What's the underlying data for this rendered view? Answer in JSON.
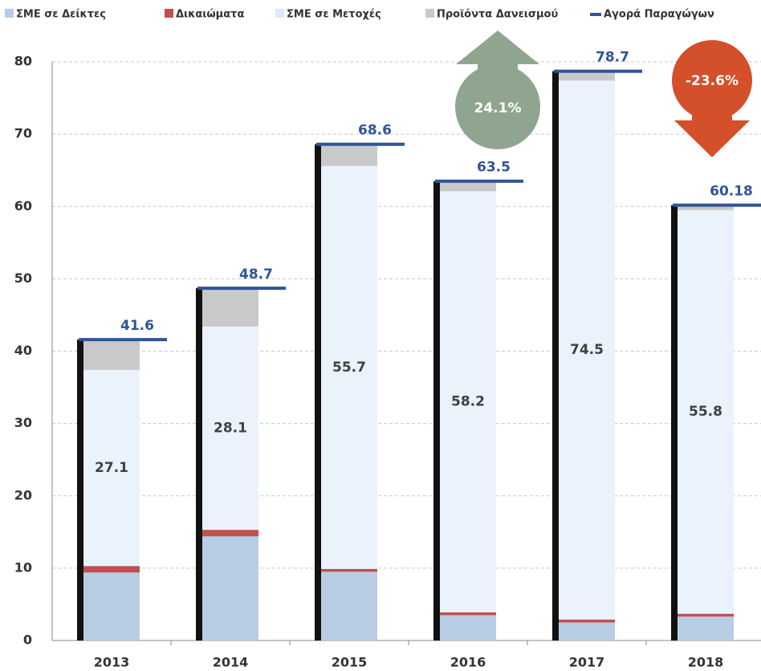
{
  "chart_data": {
    "type": "stacked-bar",
    "categories": [
      "2013",
      "2014",
      "2015",
      "2016",
      "2017",
      "2018"
    ],
    "series": [
      {
        "name": "ΣΜΕ σε Δείκτες",
        "color": "#b8cce4",
        "values": [
          9.4,
          14.4,
          9.5,
          3.5,
          2.5,
          3.3
        ]
      },
      {
        "name": "Δικαιώματα",
        "color": "#c0504d",
        "values": [
          0.9,
          0.9,
          0.4,
          0.4,
          0.4,
          0.4
        ]
      },
      {
        "name": "ΣΜΕ σε Μετοχές",
        "color": "#eaf2fc",
        "values": [
          27.1,
          28.1,
          55.7,
          58.2,
          74.5,
          55.8
        ],
        "show_values": true
      },
      {
        "name": "Προϊόντα Δανεισμού",
        "color": "#c9c9c9",
        "values": [
          4.2,
          5.3,
          3.0,
          1.4,
          1.3,
          0.68
        ]
      },
      {
        "name": "Αγορά Παραγώγων",
        "type": "line",
        "color": "#2f5597",
        "values": [
          41.6,
          48.7,
          68.6,
          63.5,
          78.7,
          60.18
        ],
        "show_values": true
      }
    ],
    "annotations": [
      "24.1%",
      "-23.6%"
    ],
    "ylim": [
      0,
      80
    ],
    "yticks": [
      0,
      10,
      20,
      30,
      40,
      50,
      60,
      70,
      80
    ],
    "grid": true
  }
}
